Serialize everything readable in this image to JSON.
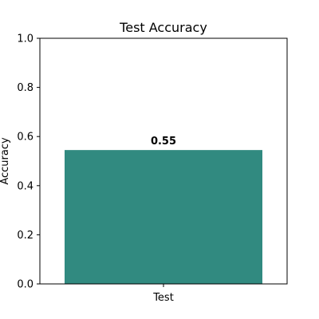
{
  "chart_data": {
    "type": "bar",
    "title": "Test Accuracy",
    "xlabel": "",
    "ylabel": "Accuracy",
    "categories": [
      "Test"
    ],
    "values": [
      0.545
    ],
    "data_labels": [
      "0.55"
    ],
    "ylim": [
      0,
      1.0
    ],
    "yticks": [
      "0.0",
      "0.2",
      "0.4",
      "0.6",
      "0.8",
      "1.0"
    ],
    "ytick_values": [
      0.0,
      0.2,
      0.4,
      0.6,
      0.8,
      1.0
    ],
    "bar_color": "#318a80",
    "grid": false,
    "legend": "none"
  }
}
